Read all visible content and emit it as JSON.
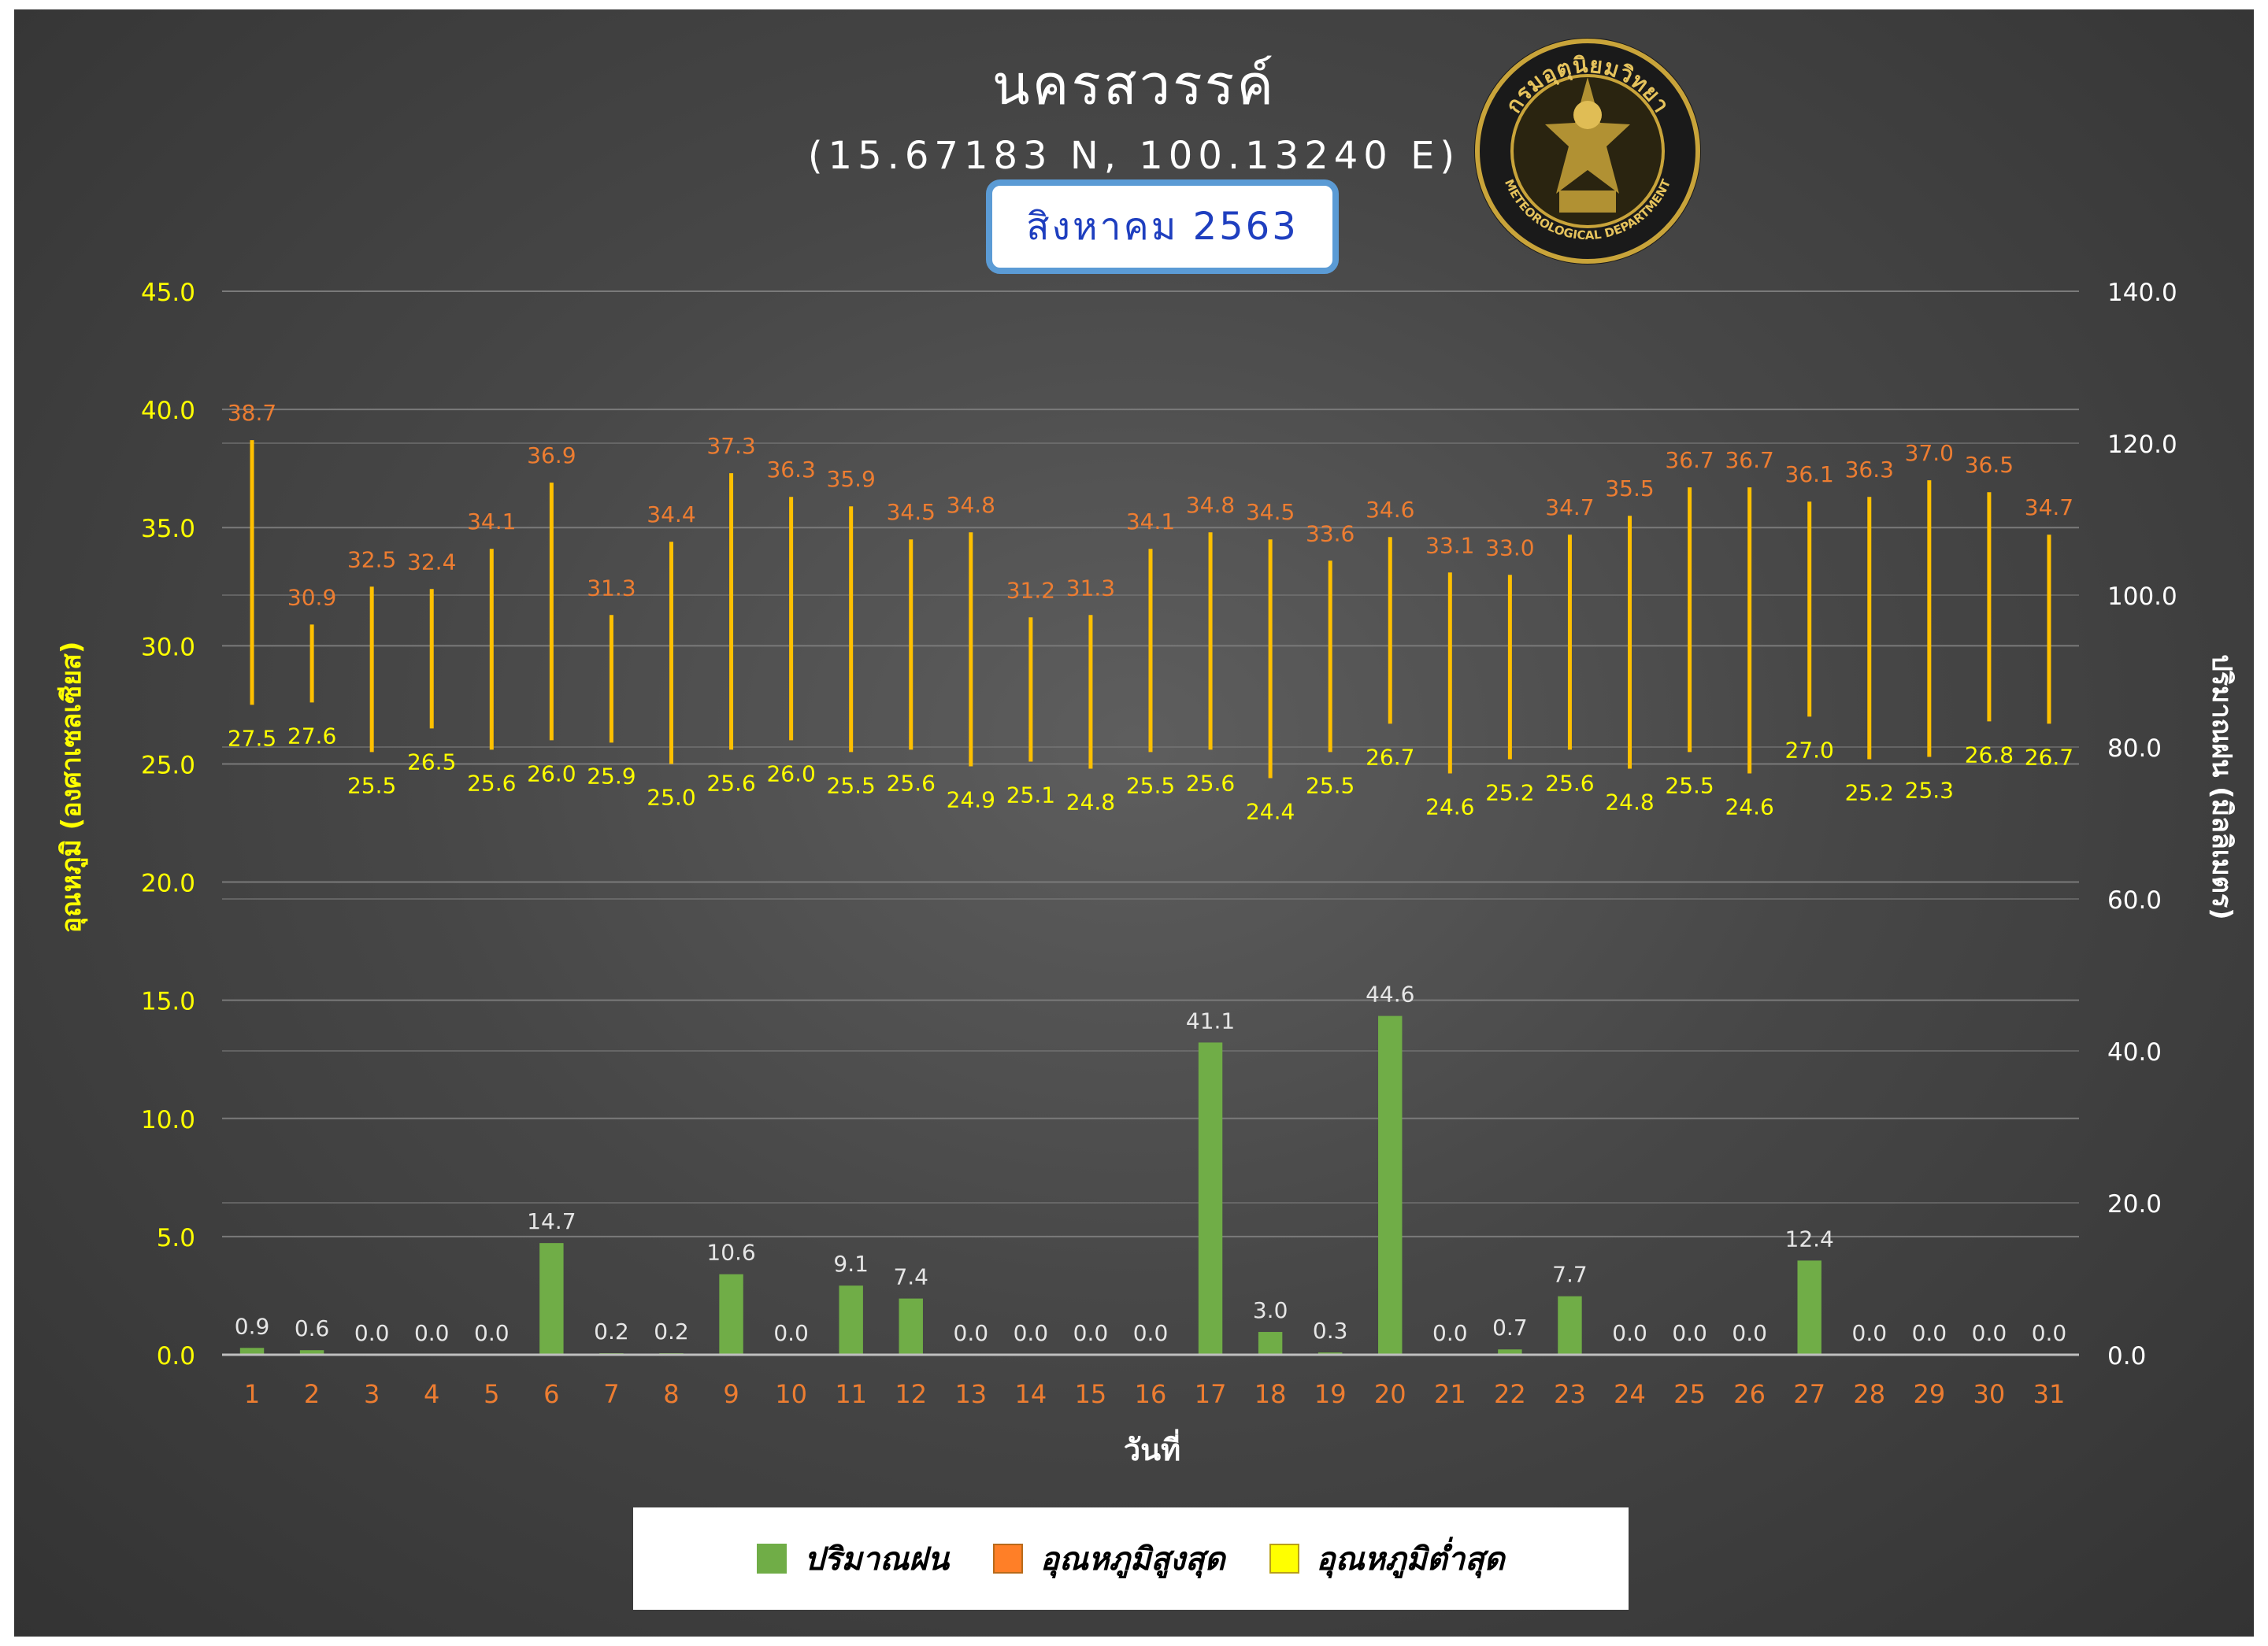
{
  "header": {
    "title": "นครสวรรค์",
    "coordinates": "(15.67183 N, 100.13240 E)",
    "month": "สิงหาคม 2563"
  },
  "logo": {
    "text_top": "กรมอุตุนิยมวิทยา",
    "text_bottom": "METEOROLOGICAL DEPARTMENT"
  },
  "legend": {
    "rain_label": "ปริมาณฝน",
    "max_label": "อุณหภูมิสูงสุด",
    "min_label": "อุณหภูมิต่ำสุด"
  },
  "colors": {
    "rain": "#70ad47",
    "max_temp": "#ed7d31",
    "min_temp": "#ffff00",
    "range_line": "#ffc000",
    "left_axis_text": "#ffff00",
    "right_axis_text": "#ffffff",
    "day_text": "#ed7d31",
    "grid": "#7a7a7a"
  },
  "chart_data": {
    "type": "bar",
    "xlabel": "วันที่",
    "ylabel_left": "อุณหภูมิ (องศาเซลเซียส)",
    "ylabel_right": "ปริมาณฝน (มิลลิเมตร)",
    "ylim_left": [
      0,
      45
    ],
    "ylim_right": [
      0,
      140
    ],
    "yticks_left": [
      "0.0",
      "5.0",
      "10.0",
      "15.0",
      "20.0",
      "25.0",
      "30.0",
      "35.0",
      "40.0",
      "45.0"
    ],
    "yticks_right": [
      "0.0",
      "20.0",
      "40.0",
      "60.0",
      "80.0",
      "100.0",
      "120.0",
      "140.0"
    ],
    "grid": true,
    "legend_position": "bottom",
    "categories": [
      "1",
      "2",
      "3",
      "4",
      "5",
      "6",
      "7",
      "8",
      "9",
      "10",
      "11",
      "12",
      "13",
      "14",
      "15",
      "16",
      "17",
      "18",
      "19",
      "20",
      "21",
      "22",
      "23",
      "24",
      "25",
      "26",
      "27",
      "28",
      "29",
      "30",
      "31"
    ],
    "series": [
      {
        "name": "ปริมาณฝน",
        "kind": "bar",
        "axis": "right",
        "values": [
          0.9,
          0.6,
          0.0,
          0.0,
          0.0,
          14.7,
          0.2,
          0.2,
          10.6,
          0.0,
          9.1,
          7.4,
          0.0,
          0.0,
          0.0,
          0.0,
          41.1,
          3.0,
          0.3,
          44.6,
          0.0,
          0.7,
          7.7,
          0.0,
          0.0,
          0.0,
          12.4,
          0.0,
          0.0,
          0.0,
          0.0
        ],
        "labels": [
          "0.9",
          "0.6",
          "0.0",
          "0.0",
          "0.0",
          "14.7",
          "0.2",
          "0.2",
          "10.6",
          "0.0",
          "9.1",
          "7.4",
          "0.0",
          "0.0",
          "0.0",
          "0.0",
          "41.1",
          "3.0",
          "0.3",
          "44.6",
          "0.0",
          "0.7",
          "7.7",
          "0.0",
          "0.0",
          "0.0",
          "12.4",
          "0.0",
          "0.0",
          "0.0",
          "0.0"
        ]
      },
      {
        "name": "อุณหภูมิสูงสุด",
        "kind": "high",
        "axis": "left",
        "values": [
          38.7,
          30.9,
          32.5,
          32.4,
          34.1,
          36.9,
          31.3,
          34.4,
          37.3,
          36.3,
          35.9,
          34.5,
          34.8,
          31.2,
          31.3,
          34.1,
          34.8,
          34.5,
          33.6,
          34.6,
          33.1,
          33.0,
          34.7,
          35.5,
          36.7,
          36.7,
          36.1,
          36.3,
          37.0,
          36.5,
          34.7
        ],
        "labels": [
          "38.7",
          "30.9",
          "32.5",
          "32.4",
          "34.1",
          "36.9",
          "31.3",
          "34.4",
          "37.3",
          "36.3",
          "35.9",
          "34.5",
          "34.8",
          "31.2",
          "31.3",
          "34.1",
          "34.8",
          "34.5",
          "33.6",
          "34.6",
          "33.1",
          "33.0",
          "34.7",
          "35.5",
          "36.7",
          "36.7",
          "36.1",
          "36.3",
          "37.0",
          "36.5",
          "34.7"
        ]
      },
      {
        "name": "อุณหภูมิต่ำสุด",
        "kind": "low",
        "axis": "left",
        "values": [
          27.5,
          27.6,
          25.5,
          26.5,
          25.6,
          26.0,
          25.9,
          25.0,
          25.6,
          26.0,
          25.5,
          25.6,
          24.9,
          25.1,
          24.8,
          25.5,
          25.6,
          24.4,
          25.5,
          26.7,
          24.6,
          25.2,
          25.6,
          24.8,
          25.5,
          24.6,
          27.0,
          25.2,
          25.3,
          26.8,
          26.7
        ],
        "labels": [
          "27.5",
          "27.6",
          "25.5",
          "26.5",
          "25.6",
          "26.0",
          "25.9",
          "25.0",
          "25.6",
          "26.0",
          "25.5",
          "25.6",
          "24.9",
          "25.1",
          "24.8",
          "25.5",
          "25.6",
          "24.4",
          "25.5",
          "26.7",
          "24.6",
          "25.2",
          "25.6",
          "24.8",
          "25.5",
          "24.6",
          "27.0",
          "25.2",
          "25.3",
          "26.8",
          "26.7"
        ]
      }
    ]
  }
}
